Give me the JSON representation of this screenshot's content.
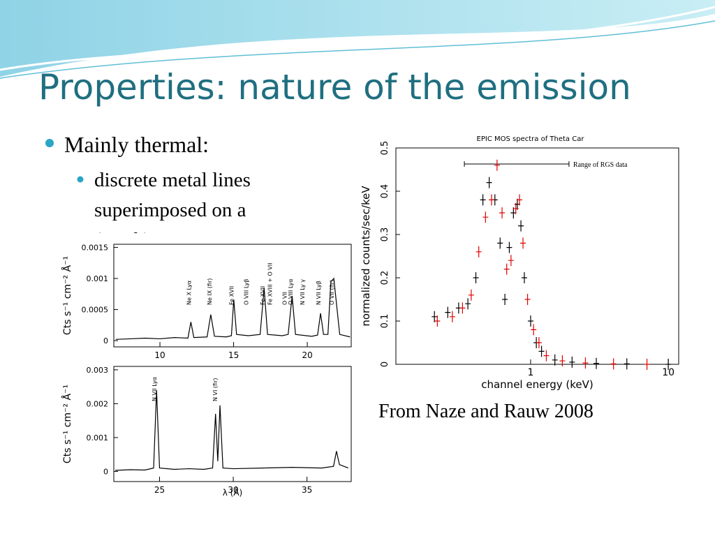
{
  "title": "Properties: nature of the emission",
  "bullets": [
    {
      "text": "Mainly thermal:",
      "sub": [
        "discrete metal lines",
        "superimposed on a",
        "(weak) continuum"
      ]
    }
  ],
  "caption": "From Naze and Rauw 2008",
  "figures": [
    {
      "type": "line",
      "xlim": [
        6.87,
        22.98
      ],
      "ylim": [
        -0.0001,
        0.00155
      ],
      "xticks": [
        10,
        15,
        20
      ],
      "yticks": [
        0,
        {
          "value": 0.0005,
          "label": "0.0005"
        },
        {
          "value": 0.001,
          "label": "0.001"
        },
        {
          "value": 0.0015,
          "label": "0.0015"
        }
      ],
      "y_label": "Cts s⁻¹ cm⁻² Å⁻¹",
      "annotations": [
        {
          "x": 12.1,
          "text": "Ne X Lyα"
        },
        {
          "x": 13.5,
          "text": "Ne IX (fir)"
        },
        {
          "x": 15.0,
          "text": "Fe XVII"
        },
        {
          "x": 16.0,
          "text": "O VIII Lyβ"
        },
        {
          "x": 17.1,
          "text": "Fe XVII"
        },
        {
          "x": 17.6,
          "text": "Fe XVIII + O VII"
        },
        {
          "x": 18.6,
          "text": "O VII"
        },
        {
          "x": 19.0,
          "text": "O VIII Lyα"
        },
        {
          "x": 19.8,
          "text": "N VII Ly γ"
        },
        {
          "x": 20.9,
          "text": "N VII Lyβ"
        },
        {
          "x": 21.8,
          "text": "O VII (fir)"
        }
      ],
      "series": [
        {
          "color": "#000000",
          "x": [
            7,
            8,
            9,
            10,
            11,
            11.9,
            12.1,
            12.3,
            13.2,
            13.45,
            13.7,
            14.5,
            14.85,
            15.01,
            15.2,
            16.0,
            16.8,
            17.07,
            17.3,
            18.3,
            18.7,
            18.97,
            19.2,
            20.3,
            20.7,
            20.9,
            21.1,
            21.4,
            21.6,
            21.8,
            22.2,
            22.9
          ],
          "values": [
            2e-05,
            3e-05,
            4e-05,
            3e-05,
            5e-05,
            4e-05,
            0.0003,
            5e-05,
            6e-05,
            0.00042,
            7e-05,
            6e-05,
            8e-05,
            0.00066,
            0.0001,
            8e-05,
            0.0001,
            0.00085,
            0.0001,
            8e-05,
            0.0001,
            0.00072,
            0.0001,
            7e-05,
            9e-05,
            0.00044,
            0.0001,
            0.0001,
            0.00095,
            0.001,
            0.0001,
            6e-05
          ]
        }
      ]
    },
    {
      "type": "line",
      "xlim": [
        21.9,
        38.0
      ],
      "ylim": [
        -0.0003,
        0.0031
      ],
      "xticks": [
        25,
        30,
        35
      ],
      "yticks": [
        0,
        {
          "value": 0.001,
          "label": "0.001"
        },
        {
          "value": 0.002,
          "label": "0.002"
        },
        {
          "value": 0.003,
          "label": "0.003"
        }
      ],
      "x_label": "λ (Å)",
      "y_label": "Cts s⁻¹ cm⁻² Å⁻¹",
      "annotations": [
        {
          "x": 24.8,
          "text": "N VII Lyα"
        },
        {
          "x": 28.9,
          "text": "N VI (fir)"
        }
      ],
      "series": [
        {
          "color": "#000000",
          "x": [
            22,
            23,
            24,
            24.6,
            24.8,
            25.0,
            26,
            27,
            28,
            28.6,
            28.8,
            28.95,
            29.1,
            29.3,
            30,
            32,
            34,
            36,
            36.8,
            37,
            37.2,
            37.8
          ],
          "values": [
            3e-05,
            5e-05,
            4e-05,
            0.0001,
            0.0024,
            0.0001,
            6e-05,
            8e-05,
            6e-05,
            0.0001,
            0.0017,
            0.0003,
            0.00195,
            0.0001,
            8e-05,
            0.0001,
            0.00012,
            0.0001,
            0.00015,
            0.0006,
            0.0002,
            0.0001
          ]
        }
      ]
    },
    {
      "type": "scatter",
      "title": "EPIC MOS spectra of Theta Car",
      "log_x": true,
      "xlim": [
        0.105,
        11.9
      ],
      "ylim": [
        0,
        0.5
      ],
      "xticks": [
        1,
        10
      ],
      "yticks": [
        0,
        0.1,
        0.2,
        0.3,
        0.4,
        0.5
      ],
      "x_label": "channel energy (keV)",
      "y_label": "normalized counts/sec/keV",
      "range_annotation": {
        "from": 0.33,
        "to": 1.9,
        "text": "Range of RGS data"
      },
      "series": [
        {
          "color": "#000000",
          "x": [
            0.2,
            0.25,
            0.3,
            0.35,
            0.4,
            0.45,
            0.5,
            0.55,
            0.6,
            0.65,
            0.7,
            0.75,
            0.8,
            0.85,
            0.9,
            1.0,
            1.1,
            1.2,
            1.5,
            2,
            3,
            5,
            10
          ],
          "values": [
            0.11,
            0.12,
            0.13,
            0.14,
            0.2,
            0.38,
            0.42,
            0.38,
            0.28,
            0.15,
            0.27,
            0.35,
            0.37,
            0.32,
            0.2,
            0.1,
            0.05,
            0.03,
            0.01,
            0.005,
            0.002,
            0.001,
            0
          ]
        },
        {
          "color": "#e00000",
          "x": [
            0.21,
            0.27,
            0.32,
            0.37,
            0.42,
            0.47,
            0.52,
            0.57,
            0.62,
            0.67,
            0.72,
            0.78,
            0.83,
            0.88,
            0.95,
            1.05,
            1.15,
            1.3,
            1.7,
            2.5,
            4,
            7
          ],
          "values": [
            0.1,
            0.11,
            0.13,
            0.16,
            0.26,
            0.34,
            0.38,
            0.46,
            0.35,
            0.22,
            0.24,
            0.36,
            0.38,
            0.28,
            0.15,
            0.08,
            0.05,
            0.02,
            0.008,
            0.003,
            0.001,
            0
          ]
        }
      ]
    }
  ]
}
